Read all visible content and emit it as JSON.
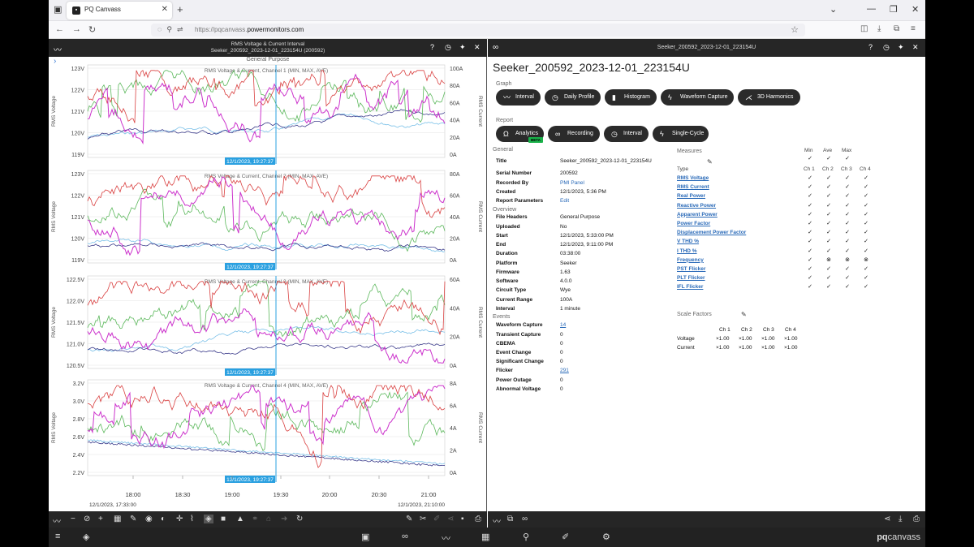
{
  "browser": {
    "tab_title": "PQ Canvass",
    "url_host": "https://pqcanvass.",
    "url_domain": "powermonitors.com"
  },
  "left_panel": {
    "header_line1": "RMS Voltage & Current Interval",
    "header_line2": "Seeker_200592_2023-12-01_223154U (200592)",
    "subheader": "General Purpose",
    "charts": [
      {
        "title": "RMS Voltage & Current, Channel 1 (MIN, MAX, AVE)",
        "y_left": [
          "123V",
          "122V",
          "121V",
          "120V",
          "119V"
        ],
        "y_right": [
          "100A",
          "80A",
          "60A",
          "40A",
          "20A",
          "0A"
        ],
        "cursor_label": "12/1/2023, 19:27:37"
      },
      {
        "title": "RMS Voltage & Current, Channel 2 (MIN, MAX, AVE)",
        "y_left": [
          "123V",
          "122V",
          "121V",
          "120V",
          "119V"
        ],
        "y_right": [
          "80A",
          "60A",
          "40A",
          "20A",
          "0A"
        ],
        "cursor_label": "12/1/2023, 19:27:37"
      },
      {
        "title": "RMS Voltage & Current, Channel 3 (MIN, MAX, AVE)",
        "y_left": [
          "122.5V",
          "122.0V",
          "121.5V",
          "121.0V",
          "120.5V"
        ],
        "y_right": [
          "60A",
          "40A",
          "20A",
          "0A"
        ],
        "cursor_label": "12/1/2023, 19:27:37"
      },
      {
        "title": "RMS Voltage & Current, Channel 4 (MIN, MAX, AVE)",
        "y_left": [
          "3.2V",
          "3.0V",
          "2.8V",
          "2.6V",
          "2.4V",
          "2.2V"
        ],
        "y_right": [
          "8A",
          "6A",
          "4A",
          "2A",
          "0A"
        ],
        "cursor_label": "12/1/2023, 19:27:37"
      }
    ],
    "y_axis_left_label": "RMS Voltage",
    "y_axis_right_label": "RMS Current",
    "x_ticks": [
      "18:00",
      "18:30",
      "19:00",
      "19:30",
      "20:00",
      "20:30",
      "21:00"
    ],
    "x_start": "12/1/2023, 17:33:00",
    "x_end": "12/1/2023, 21:10:00"
  },
  "right_panel": {
    "header_title": "Seeker_200592_2023-12-01_223154U",
    "title": "Seeker_200592_2023-12-01_223154U",
    "graph_label": "Graph",
    "graph_buttons": [
      "Interval",
      "Daily Profile",
      "Histogram",
      "Waveform Capture",
      "3D Harmonics"
    ],
    "report_label": "Report",
    "report_buttons": [
      "Analytics",
      "Recording",
      "Interval",
      "Single-Cycle"
    ],
    "beta": "BETA",
    "general_label": "General",
    "general": [
      {
        "label": "Title",
        "value": "Seeker_200592_2023-12-01_223154U"
      },
      {
        "label": "Serial Number",
        "value": "200592"
      },
      {
        "label": "Recorded By",
        "value": "PMI Panel"
      },
      {
        "label": "Created",
        "value": "12/1/2023, 5:36 PM"
      },
      {
        "label": "Report Parameters",
        "value": "Edit"
      }
    ],
    "overview_label": "Overview",
    "overview": [
      {
        "label": "File Headers",
        "value": "General Purpose"
      },
      {
        "label": "Uploaded",
        "value": "No"
      },
      {
        "label": "Start",
        "value": "12/1/2023, 5:33:00 PM"
      },
      {
        "label": "End",
        "value": "12/1/2023, 9:11:00 PM"
      },
      {
        "label": "Duration",
        "value": "03:38:00"
      },
      {
        "label": "Platform",
        "value": "Seeker"
      },
      {
        "label": "Firmware",
        "value": "1.63"
      },
      {
        "label": "Software",
        "value": "4.0.0"
      },
      {
        "label": "Circuit Type",
        "value": "Wye"
      },
      {
        "label": "Current Range",
        "value": "100A"
      },
      {
        "label": "Interval",
        "value": "1 minute"
      }
    ],
    "events_label": "Events",
    "events": [
      {
        "label": "Waveform Capture",
        "value": "14"
      },
      {
        "label": "Transient Capture",
        "value": "0"
      },
      {
        "label": "CBEMA",
        "value": "0"
      },
      {
        "label": "Event Change",
        "value": "0"
      },
      {
        "label": "Significant Change",
        "value": "0"
      },
      {
        "label": "Flicker",
        "value": "291"
      },
      {
        "label": "Power Outage",
        "value": "0"
      },
      {
        "label": "Abnormal Voltage",
        "value": "0"
      }
    ],
    "measures_label": "Measures",
    "mma": [
      "Min",
      "Ave",
      "Max"
    ],
    "type_label": "Type",
    "channels": [
      "Ch 1",
      "Ch 2",
      "Ch 3",
      "Ch 4"
    ],
    "measures": [
      "RMS Voltage",
      "RMS Current",
      "Real Power",
      "Reactive Power",
      "Apparent Power",
      "Power Factor",
      "Displacement Power Factor",
      "V THD %",
      "I THD %",
      "Frequency",
      "PST Flicker",
      "PLT Flicker",
      "IFL Flicker"
    ],
    "check": "✓",
    "cross": "⊗",
    "scale_label": "Scale Factors",
    "scale_rows": [
      {
        "label": "Voltage",
        "values": [
          "×1.00",
          "×1.00",
          "×1.00",
          "×1.00"
        ]
      },
      {
        "label": "Current",
        "values": [
          "×1.00",
          "×1.00",
          "×1.00",
          "×1.00"
        ]
      }
    ]
  },
  "brand": {
    "pq": "pq",
    "canvass": "canvass"
  },
  "colors": {
    "dark": "#262626",
    "link": "#2a6ab8",
    "cursor": "#2aa0e0",
    "magenta": "#cc33cc",
    "red": "#d94040",
    "green": "#5cb85c",
    "navy": "#3a3a8a",
    "lightblue": "#7ac0e8"
  }
}
